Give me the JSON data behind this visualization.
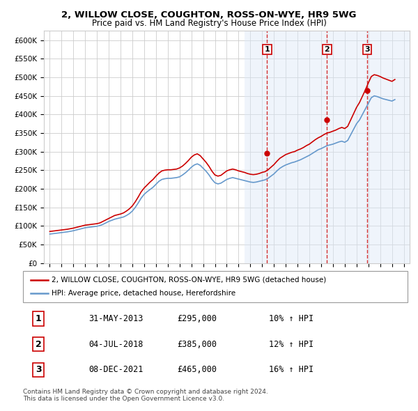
{
  "title": "2, WILLOW CLOSE, COUGHTON, ROSS-ON-WYE, HR9 5WG",
  "subtitle": "Price paid vs. HM Land Registry's House Price Index (HPI)",
  "ylim": [
    0,
    625000
  ],
  "yticks": [
    0,
    50000,
    100000,
    150000,
    200000,
    250000,
    300000,
    350000,
    400000,
    450000,
    500000,
    550000,
    600000
  ],
  "ylabel_format": "£{0}K",
  "legend_line1": "2, WILLOW CLOSE, COUGHTON, ROSS-ON-WYE, HR9 5WG (detached house)",
  "legend_line2": "HPI: Average price, detached house, Herefordshire",
  "sale_points": [
    {
      "label": "1",
      "date": "31-MAY-2013",
      "price": 295000,
      "pct": "10%",
      "x": 2013.42
    },
    {
      "label": "2",
      "date": "04-JUL-2018",
      "price": 385000,
      "pct": "12%",
      "x": 2018.5
    },
    {
      "label": "3",
      "date": "08-DEC-2021",
      "price": 465000,
      "pct": "16%",
      "x": 2021.92
    }
  ],
  "table_rows": [
    {
      "num": "1",
      "date": "31-MAY-2013",
      "price": "£295,000",
      "pct": "10% ↑ HPI"
    },
    {
      "num": "2",
      "date": "04-JUL-2018",
      "price": "£385,000",
      "pct": "12% ↑ HPI"
    },
    {
      "num": "3",
      "date": "08-DEC-2021",
      "price": "£465,000",
      "pct": "16% ↑ HPI"
    }
  ],
  "footer": "Contains HM Land Registry data © Crown copyright and database right 2024.\nThis data is licensed under the Open Government Licence v3.0.",
  "line_color_red": "#cc0000",
  "line_color_blue": "#6699cc",
  "vline_color": "#cc0000",
  "bg_color": "#e8eef8",
  "plot_bg": "#ffffff",
  "dashed_vline_alpha": 0.7,
  "hpi_data": {
    "x": [
      1995,
      1995.25,
      1995.5,
      1995.75,
      1996,
      1996.25,
      1996.5,
      1996.75,
      1997,
      1997.25,
      1997.5,
      1997.75,
      1998,
      1998.25,
      1998.5,
      1998.75,
      1999,
      1999.25,
      1999.5,
      1999.75,
      2000,
      2000.25,
      2000.5,
      2000.75,
      2001,
      2001.25,
      2001.5,
      2001.75,
      2002,
      2002.25,
      2002.5,
      2002.75,
      2003,
      2003.25,
      2003.5,
      2003.75,
      2004,
      2004.25,
      2004.5,
      2004.75,
      2005,
      2005.25,
      2005.5,
      2005.75,
      2006,
      2006.25,
      2006.5,
      2006.75,
      2007,
      2007.25,
      2007.5,
      2007.75,
      2008,
      2008.25,
      2008.5,
      2008.75,
      2009,
      2009.25,
      2009.5,
      2009.75,
      2010,
      2010.25,
      2010.5,
      2010.75,
      2011,
      2011.25,
      2011.5,
      2011.75,
      2012,
      2012.25,
      2012.5,
      2012.75,
      2013,
      2013.25,
      2013.5,
      2013.75,
      2014,
      2014.25,
      2014.5,
      2014.75,
      2015,
      2015.25,
      2015.5,
      2015.75,
      2016,
      2016.25,
      2016.5,
      2016.75,
      2017,
      2017.25,
      2017.5,
      2017.75,
      2018,
      2018.25,
      2018.5,
      2018.75,
      2019,
      2019.25,
      2019.5,
      2019.75,
      2020,
      2020.25,
      2020.5,
      2020.75,
      2021,
      2021.25,
      2021.5,
      2021.75,
      2022,
      2022.25,
      2022.5,
      2022.75,
      2023,
      2023.25,
      2023.5,
      2023.75,
      2024,
      2024.25
    ],
    "y_hpi": [
      78000,
      79000,
      80000,
      81000,
      82000,
      83000,
      84000,
      85500,
      87000,
      89000,
      91000,
      93000,
      95000,
      96000,
      97000,
      98000,
      99000,
      101000,
      104000,
      108000,
      112000,
      115000,
      118000,
      120000,
      122000,
      124000,
      128000,
      133000,
      140000,
      150000,
      162000,
      175000,
      185000,
      192000,
      198000,
      204000,
      212000,
      220000,
      225000,
      227000,
      228000,
      228000,
      229000,
      230000,
      232000,
      237000,
      243000,
      250000,
      258000,
      264000,
      267000,
      263000,
      255000,
      247000,
      237000,
      225000,
      216000,
      213000,
      215000,
      220000,
      225000,
      228000,
      230000,
      228000,
      226000,
      224000,
      222000,
      220000,
      218000,
      217000,
      218000,
      220000,
      222000,
      224000,
      228000,
      234000,
      240000,
      248000,
      255000,
      260000,
      264000,
      267000,
      270000,
      272000,
      275000,
      278000,
      282000,
      286000,
      290000,
      295000,
      300000,
      305000,
      308000,
      312000,
      316000,
      318000,
      320000,
      323000,
      326000,
      328000,
      325000,
      330000,
      345000,
      360000,
      375000,
      385000,
      400000,
      415000,
      430000,
      445000,
      450000,
      448000,
      445000,
      442000,
      440000,
      438000,
      436000,
      440000
    ],
    "y_price": [
      85000,
      86000,
      87000,
      88000,
      89000,
      90000,
      91000,
      92500,
      94000,
      96000,
      98000,
      100000,
      102000,
      103000,
      104000,
      105000,
      106000,
      108000,
      112000,
      116000,
      120000,
      124000,
      128000,
      130000,
      132000,
      135000,
      140000,
      146000,
      154000,
      165000,
      178000,
      192000,
      202000,
      210000,
      218000,
      225000,
      234000,
      242000,
      248000,
      250000,
      251000,
      251000,
      252000,
      253000,
      256000,
      261000,
      268000,
      276000,
      285000,
      291000,
      294000,
      289000,
      280000,
      271000,
      260000,
      247000,
      237000,
      234000,
      236000,
      242000,
      248000,
      251000,
      253000,
      251000,
      248000,
      246000,
      244000,
      241000,
      239000,
      238000,
      239000,
      241000,
      244000,
      246000,
      251000,
      258000,
      265000,
      274000,
      282000,
      287000,
      292000,
      295000,
      298000,
      300000,
      304000,
      307000,
      311000,
      316000,
      320000,
      326000,
      332000,
      337000,
      341000,
      346000,
      350000,
      352000,
      355000,
      358000,
      362000,
      365000,
      362000,
      368000,
      385000,
      402000,
      419000,
      432000,
      449000,
      466000,
      485000,
      502000,
      507000,
      505000,
      502000,
      498000,
      495000,
      492000,
      489000,
      494000
    ]
  }
}
